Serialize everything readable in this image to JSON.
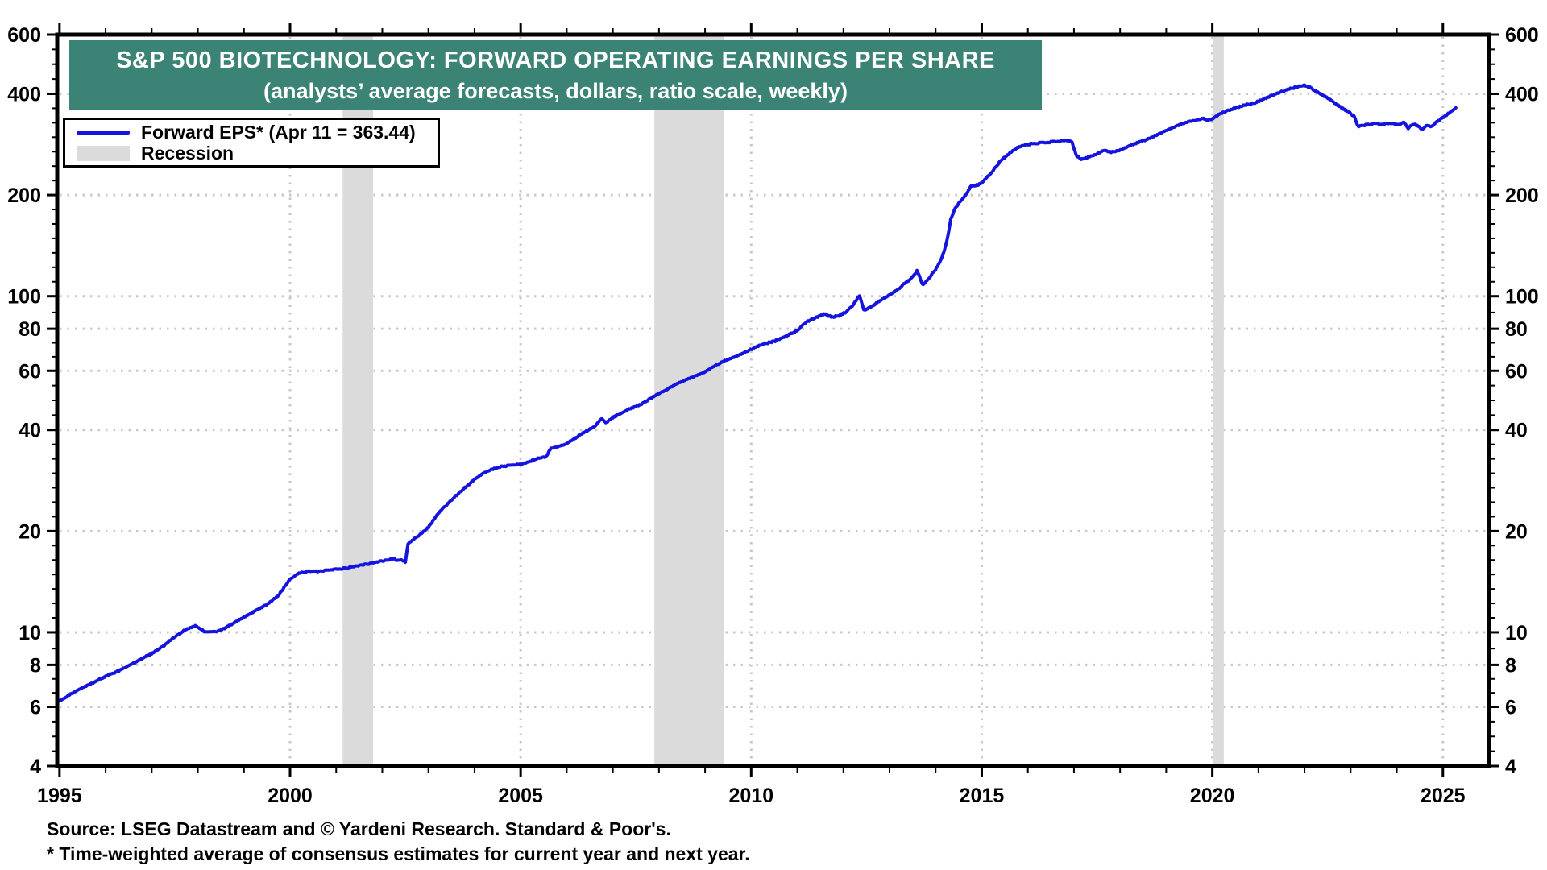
{
  "banner": {
    "title": "S&P 500 BIOTECHNOLOGY: FORWARD OPERATING EARNINGS PER SHARE",
    "subtitle": "(analysts’ average forecasts, dollars, ratio scale, weekly)",
    "bg_color": "#3B8374",
    "text_color": "#FFFFFF"
  },
  "legend": {
    "series_label": "Forward EPS* (Apr 11 = 363.44)",
    "recession_label": "Recession",
    "line_color": "#1414DE",
    "recession_color": "#DBDBDB"
  },
  "footer": {
    "source": "Source: LSEG Datastream and © Yardeni Research. Standard & Poor's.",
    "footnote": "* Time-weighted average of consensus estimates for current year and next year."
  },
  "chart_data": {
    "type": "line",
    "title": "S&P 500 BIOTECHNOLOGY: FORWARD OPERATING EARNINGS PER SHARE",
    "subtitle": "(analysts’ average forecasts, dollars, ratio scale, weekly)",
    "y_scale": "log",
    "ylabel": "dollars",
    "y_ticks": [
      4,
      6,
      8,
      10,
      20,
      40,
      60,
      80,
      100,
      200,
      400,
      600
    ],
    "y_grid_values": [
      6,
      8,
      10,
      20,
      40,
      60,
      80,
      100,
      200,
      400
    ],
    "y_range": [
      4,
      600
    ],
    "x_range": [
      1994.95,
      2026.0
    ],
    "x_major_ticks": [
      1995,
      2000,
      2005,
      2010,
      2015,
      2020,
      2025
    ],
    "x_grid_years": [
      2000,
      2005,
      2010,
      2015,
      2020,
      2025
    ],
    "x_minor_step_years": 1,
    "grid": "dotted gray at labeled ticks, both axes mirrored left/right and top/bottom",
    "legend_position": "top-left",
    "latest_point": {
      "date_label": "Apr 11",
      "value": 363.44
    },
    "recessions": [
      [
        2001.14,
        2001.8
      ],
      [
        2007.9,
        2009.4
      ],
      [
        2020.02,
        2020.25
      ]
    ],
    "series": [
      {
        "name": "Forward EPS",
        "color": "#1414DE",
        "points": [
          [
            1995.0,
            6.25
          ],
          [
            1995.25,
            6.55
          ],
          [
            1995.5,
            6.85
          ],
          [
            1995.75,
            7.1
          ],
          [
            1996.0,
            7.4
          ],
          [
            1996.25,
            7.65
          ],
          [
            1996.5,
            7.95
          ],
          [
            1996.75,
            8.3
          ],
          [
            1997.0,
            8.65
          ],
          [
            1997.25,
            9.1
          ],
          [
            1997.5,
            9.7
          ],
          [
            1997.75,
            10.2
          ],
          [
            1997.95,
            10.45
          ],
          [
            1998.15,
            10.05
          ],
          [
            1998.4,
            10.05
          ],
          [
            1998.6,
            10.3
          ],
          [
            1998.8,
            10.7
          ],
          [
            1999.0,
            11.1
          ],
          [
            1999.25,
            11.6
          ],
          [
            1999.5,
            12.1
          ],
          [
            1999.75,
            12.9
          ],
          [
            2000.0,
            14.4
          ],
          [
            2000.2,
            15.0
          ],
          [
            2000.4,
            15.2
          ],
          [
            2000.6,
            15.15
          ],
          [
            2000.8,
            15.3
          ],
          [
            2001.0,
            15.4
          ],
          [
            2001.2,
            15.5
          ],
          [
            2001.4,
            15.7
          ],
          [
            2001.6,
            15.9
          ],
          [
            2001.8,
            16.1
          ],
          [
            2002.0,
            16.3
          ],
          [
            2002.2,
            16.5
          ],
          [
            2002.4,
            16.4
          ],
          [
            2002.5,
            16.2
          ],
          [
            2002.56,
            18.4
          ],
          [
            2002.75,
            19.2
          ],
          [
            2003.0,
            20.5
          ],
          [
            2003.2,
            22.5
          ],
          [
            2003.4,
            24.0
          ],
          [
            2003.6,
            25.5
          ],
          [
            2003.8,
            27.0
          ],
          [
            2004.0,
            28.5
          ],
          [
            2004.2,
            29.8
          ],
          [
            2004.4,
            30.6
          ],
          [
            2004.6,
            31.2
          ],
          [
            2004.8,
            31.4
          ],
          [
            2005.0,
            31.6
          ],
          [
            2005.2,
            32.2
          ],
          [
            2005.4,
            33.0
          ],
          [
            2005.55,
            33.2
          ],
          [
            2005.65,
            35.2
          ],
          [
            2005.85,
            35.8
          ],
          [
            2006.0,
            36.4
          ],
          [
            2006.2,
            38.0
          ],
          [
            2006.4,
            39.5
          ],
          [
            2006.6,
            41.0
          ],
          [
            2006.75,
            43.3
          ],
          [
            2006.85,
            42.0
          ],
          [
            2007.0,
            43.5
          ],
          [
            2007.2,
            45.0
          ],
          [
            2007.4,
            46.5
          ],
          [
            2007.6,
            47.5
          ],
          [
            2007.8,
            49.5
          ],
          [
            2007.95,
            51.0
          ],
          [
            2008.2,
            53.0
          ],
          [
            2008.4,
            55.0
          ],
          [
            2008.6,
            56.5
          ],
          [
            2008.8,
            58.0
          ],
          [
            2009.0,
            59.5
          ],
          [
            2009.2,
            62.0
          ],
          [
            2009.45,
            64.5
          ],
          [
            2009.7,
            66.5
          ],
          [
            2010.0,
            69.5
          ],
          [
            2010.25,
            72.0
          ],
          [
            2010.5,
            73.5
          ],
          [
            2010.75,
            76.0
          ],
          [
            2011.0,
            79.0
          ],
          [
            2011.2,
            84.0
          ],
          [
            2011.45,
            87.0
          ],
          [
            2011.6,
            88.5
          ],
          [
            2011.75,
            86.5
          ],
          [
            2011.9,
            87.5
          ],
          [
            2012.05,
            89.5
          ],
          [
            2012.2,
            94.0
          ],
          [
            2012.35,
            100.5
          ],
          [
            2012.45,
            90.5
          ],
          [
            2012.65,
            94.0
          ],
          [
            2012.85,
            98.0
          ],
          [
            2013.0,
            101.0
          ],
          [
            2013.2,
            105.0
          ],
          [
            2013.35,
            110.0
          ],
          [
            2013.45,
            112.0
          ],
          [
            2013.6,
            119.0
          ],
          [
            2013.72,
            108.0
          ],
          [
            2013.85,
            113.0
          ],
          [
            2014.0,
            120.0
          ],
          [
            2014.1,
            127.0
          ],
          [
            2014.2,
            138.0
          ],
          [
            2014.27,
            152.0
          ],
          [
            2014.33,
            170.0
          ],
          [
            2014.42,
            182.0
          ],
          [
            2014.54,
            192.0
          ],
          [
            2014.65,
            200.0
          ],
          [
            2014.76,
            212.0
          ],
          [
            2014.9,
            214.0
          ],
          [
            2015.0,
            218.0
          ],
          [
            2015.2,
            232.0
          ],
          [
            2015.4,
            252.0
          ],
          [
            2015.6,
            266.0
          ],
          [
            2015.8,
            278.0
          ],
          [
            2016.0,
            283.0
          ],
          [
            2016.2,
            285.0
          ],
          [
            2016.4,
            287.0
          ],
          [
            2016.6,
            288.0
          ],
          [
            2016.8,
            291.0
          ],
          [
            2016.95,
            289.0
          ],
          [
            2017.05,
            263.0
          ],
          [
            2017.15,
            255.0
          ],
          [
            2017.3,
            259.0
          ],
          [
            2017.5,
            265.0
          ],
          [
            2017.65,
            272.0
          ],
          [
            2017.8,
            268.0
          ],
          [
            2018.0,
            272.0
          ],
          [
            2018.2,
            280.0
          ],
          [
            2018.4,
            287.0
          ],
          [
            2018.6,
            293.0
          ],
          [
            2018.8,
            302.0
          ],
          [
            2019.0,
            311.0
          ],
          [
            2019.2,
            320.0
          ],
          [
            2019.4,
            328.0
          ],
          [
            2019.6,
            333.0
          ],
          [
            2019.8,
            338.0
          ],
          [
            2019.9,
            333.0
          ],
          [
            2020.05,
            340.0
          ],
          [
            2020.15,
            348.0
          ],
          [
            2020.3,
            355.0
          ],
          [
            2020.5,
            363.0
          ],
          [
            2020.7,
            370.0
          ],
          [
            2020.9,
            375.0
          ],
          [
            2021.1,
            385.0
          ],
          [
            2021.3,
            396.0
          ],
          [
            2021.5,
            406.0
          ],
          [
            2021.7,
            415.0
          ],
          [
            2021.85,
            420.0
          ],
          [
            2022.0,
            424.0
          ],
          [
            2022.1,
            419.0
          ],
          [
            2022.25,
            407.0
          ],
          [
            2022.4,
            396.0
          ],
          [
            2022.55,
            385.0
          ],
          [
            2022.7,
            372.0
          ],
          [
            2022.85,
            360.0
          ],
          [
            2023.0,
            350.0
          ],
          [
            2023.08,
            342.0
          ],
          [
            2023.16,
            320.0
          ],
          [
            2023.3,
            323.0
          ],
          [
            2023.5,
            326.0
          ],
          [
            2023.7,
            325.0
          ],
          [
            2023.9,
            327.0
          ],
          [
            2024.05,
            323.0
          ],
          [
            2024.15,
            329.0
          ],
          [
            2024.25,
            316.0
          ],
          [
            2024.35,
            325.0
          ],
          [
            2024.45,
            322.0
          ],
          [
            2024.55,
            313.0
          ],
          [
            2024.65,
            323.0
          ],
          [
            2024.75,
            319.0
          ],
          [
            2024.85,
            330.0
          ],
          [
            2024.95,
            336.0
          ],
          [
            2025.05,
            344.0
          ],
          [
            2025.15,
            352.0
          ],
          [
            2025.28,
            363.44
          ]
        ]
      }
    ],
    "colors": {
      "line": "#1414DE",
      "recession_band": "#DBDBDB",
      "grid_dots": "#C8C8C8",
      "axis": "#000000"
    }
  }
}
